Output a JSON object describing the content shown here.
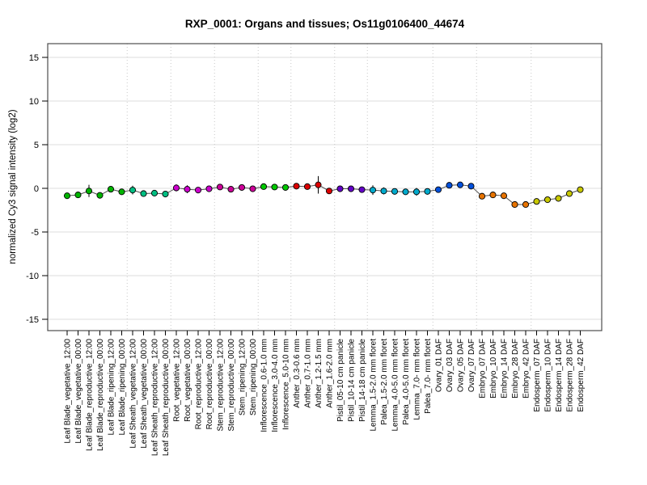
{
  "title": "RXP_0001: Organs and tissues; Os11g0106400_44674",
  "ylabel": "normalized Cy3 signal intensity (log2)",
  "chart_data": {
    "type": "scatter",
    "title": "RXP_0001: Organs and tissues; Os11g0106400_44674",
    "xlabel": "",
    "ylabel": "normalized Cy3 signal intensity (log2)",
    "ylim": [
      -16.5,
      16.5
    ],
    "yticks": [
      15,
      10,
      5,
      0,
      -5,
      -10,
      -15
    ],
    "grid": true,
    "group_separators": "dotted vertical lines between organ groups",
    "legend": "none",
    "colors": {
      "border": "#4d4d4d",
      "series_line": "#505050",
      "error_bar": "#000000",
      "h_gridline": "#dcdcdc",
      "v_separator": "#c8c8c8"
    },
    "groups": [
      {
        "name": "Leaf Blade",
        "color": "#00B400",
        "points": [
          {
            "label": "Leaf Blade_vegetative_12:00",
            "value": -0.85,
            "err": 0.2
          },
          {
            "label": "Leaf Blade_vegetative_00:00",
            "value": -0.75,
            "err": 0.35
          },
          {
            "label": "Leaf Blade_reproductive_12:00",
            "value": -0.3,
            "err": 0.7
          },
          {
            "label": "Leaf Blade_reproductive_00:00",
            "value": -0.8,
            "err": 0.3
          },
          {
            "label": "Leaf Blade_ripening_12:00",
            "value": -0.1,
            "err": 0.15
          },
          {
            "label": "Leaf Blade_ripening_00:00",
            "value": -0.4,
            "err": 0.2
          }
        ]
      },
      {
        "name": "Leaf Sheath",
        "color": "#00BE82",
        "points": [
          {
            "label": "Leaf Sheath_vegetative_12:00",
            "value": -0.2,
            "err": 0.5
          },
          {
            "label": "Leaf Sheath_vegetative_00:00",
            "value": -0.6,
            "err": 0.2
          },
          {
            "label": "Leaf Sheath_reproductive_12:00",
            "value": -0.55,
            "err": 0.15
          },
          {
            "label": "Leaf Sheath_reproductive_00:00",
            "value": -0.65,
            "err": 0.2
          }
        ]
      },
      {
        "name": "Root",
        "color": "#CC00CC",
        "points": [
          {
            "label": "Root_vegetative_12:00",
            "value": 0.05,
            "err": 0.4
          },
          {
            "label": "Root_vegetative_00:00",
            "value": -0.1,
            "err": 0.45
          },
          {
            "label": "Root_reproductive_12:00",
            "value": -0.2,
            "err": 0.2
          },
          {
            "label": "Root_reproductive_00:00",
            "value": -0.05,
            "err": 0.15
          }
        ]
      },
      {
        "name": "Stem",
        "color": "#CC0099",
        "points": [
          {
            "label": "Stem_reproductive_12:00",
            "value": 0.15,
            "err": 0.3
          },
          {
            "label": "Stem_reproductive_00:00",
            "value": -0.1,
            "err": 0.2
          },
          {
            "label": "Stem_ripening_12:00",
            "value": 0.1,
            "err": 0.15
          },
          {
            "label": "Stem_ripening_00:00",
            "value": -0.05,
            "err": 0.2
          }
        ]
      },
      {
        "name": "Inflorescence",
        "color": "#00C800",
        "points": [
          {
            "label": "Inflorescence_0.6-1.0 mm",
            "value": 0.2,
            "err": 0.15
          },
          {
            "label": "Inflorescence_3.0-4.0 mm",
            "value": 0.15,
            "err": 0.15
          },
          {
            "label": "Inflorescence_5.0-10 mm",
            "value": 0.1,
            "err": 0.15
          }
        ]
      },
      {
        "name": "Anther",
        "color": "#DC0000",
        "points": [
          {
            "label": "Anther_0.3-0.6 mm",
            "value": 0.25,
            "err": 0.2
          },
          {
            "label": "Anther_0.7-1.0 mm",
            "value": 0.2,
            "err": 0.15
          },
          {
            "label": "Anther_1.2-1.5 mm",
            "value": 0.4,
            "err": 1.0
          },
          {
            "label": "Anther_1.6-2.0 mm",
            "value": -0.3,
            "err": 0.25
          }
        ]
      },
      {
        "name": "Pistil",
        "color": "#6400C8",
        "points": [
          {
            "label": "Pistil_05-10 cm panicle",
            "value": -0.05,
            "err": 0.15
          },
          {
            "label": "Pistil_10-14 cm panicle",
            "value": -0.05,
            "err": 0.15
          },
          {
            "label": "Pistil_14-18 cm panicle",
            "value": -0.15,
            "err": 0.15
          }
        ]
      },
      {
        "name": "Lemma/Palea",
        "color": "#00AACC",
        "points": [
          {
            "label": "Lemma_1.5-2.0 mm floret",
            "value": -0.2,
            "err": 0.55
          },
          {
            "label": "Palea_1.5-2.0 mm floret",
            "value": -0.3,
            "err": 0.4
          },
          {
            "label": "Lemma_4.0-5.0 mm floret",
            "value": -0.35,
            "err": 0.2
          },
          {
            "label": "Palea_4.0-5.0 mm floret",
            "value": -0.4,
            "err": 0.25
          },
          {
            "label": "Lemma_7.0- mm floret",
            "value": -0.4,
            "err": 0.45
          },
          {
            "label": "Palea_7.0- mm floret",
            "value": -0.35,
            "err": 0.2
          }
        ]
      },
      {
        "name": "Ovary",
        "color": "#0050DC",
        "points": [
          {
            "label": "Ovary_01 DAF",
            "value": -0.15,
            "err": 0.2
          },
          {
            "label": "Ovary_03 DAF",
            "value": 0.35,
            "err": 0.15
          },
          {
            "label": "Ovary_05 DAF",
            "value": 0.4,
            "err": 0.15
          },
          {
            "label": "Ovary_07 DAF",
            "value": 0.25,
            "err": 0.15
          }
        ]
      },
      {
        "name": "Embryo",
        "color": "#E67300",
        "points": [
          {
            "label": "Embryo_07 DAF",
            "value": -0.9,
            "err": 0.2
          },
          {
            "label": "Embryo_10 DAF",
            "value": -0.75,
            "err": 0.25
          },
          {
            "label": "Embryo_14 DAF",
            "value": -0.85,
            "err": 0.3
          },
          {
            "label": "Embryo_28 DAF",
            "value": -1.85,
            "err": 0.2
          },
          {
            "label": "Embryo_42 DAF",
            "value": -1.85,
            "err": 0.2
          }
        ]
      },
      {
        "name": "Endosperm",
        "color": "#C8C800",
        "points": [
          {
            "label": "Endosperm_07 DAF",
            "value": -1.5,
            "err": 0.2
          },
          {
            "label": "Endosperm_10 DAF",
            "value": -1.3,
            "err": 0.25
          },
          {
            "label": "Endosperm_14 DAF",
            "value": -1.15,
            "err": 0.2
          },
          {
            "label": "Endosperm_28 DAF",
            "value": -0.6,
            "err": 0.2
          },
          {
            "label": "Endosperm_42 DAF",
            "value": -0.15,
            "err": 0.15
          }
        ]
      }
    ]
  }
}
